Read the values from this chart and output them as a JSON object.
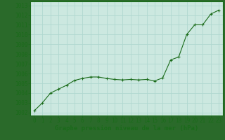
{
  "x": [
    0,
    1,
    2,
    3,
    4,
    5,
    6,
    7,
    8,
    9,
    10,
    11,
    12,
    13,
    14,
    15,
    16,
    17,
    18,
    19,
    20,
    21,
    22,
    23
  ],
  "y": [
    1002.2,
    1003.0,
    1004.0,
    1004.4,
    1004.8,
    1005.3,
    1005.5,
    1005.65,
    1005.65,
    1005.5,
    1005.4,
    1005.35,
    1005.4,
    1005.35,
    1005.4,
    1005.25,
    1005.55,
    1007.4,
    1007.7,
    1010.0,
    1011.0,
    1011.0,
    1012.1,
    1012.5
  ],
  "line_color": "#1a6b1a",
  "marker_color": "#1a6b1a",
  "bg_color": "#cce8e0",
  "grid_color": "#b0d8d0",
  "ylabel_ticks": [
    1002,
    1003,
    1004,
    1005,
    1006,
    1007,
    1008,
    1009,
    1010,
    1011,
    1012,
    1013
  ],
  "xlabel": "Graphe pression niveau de la mer (hPa)",
  "xlabel_color": "#1a6b1a",
  "ylim": [
    1001.7,
    1013.4
  ],
  "xlim": [
    -0.5,
    23.5
  ],
  "tick_label_color": "#1a6b1a",
  "font_size_xlabel": 6.5,
  "font_size_ticks": 5.5,
  "outer_bg": "#2a6a2a",
  "spine_color": "#1a6b1a"
}
